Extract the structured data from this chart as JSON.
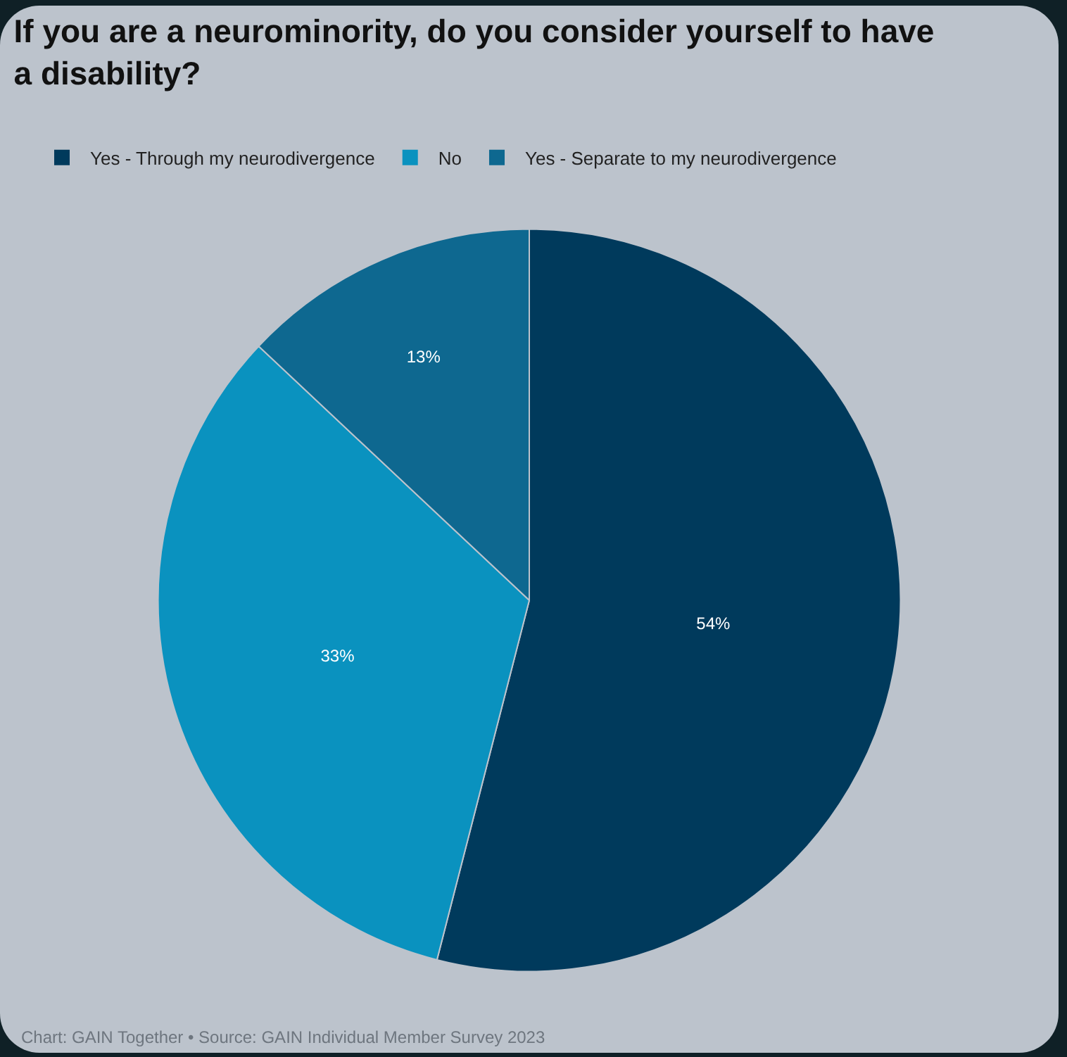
{
  "chart_data": {
    "type": "pie",
    "title": "If you are a neurominority, do you consider yourself to have a disability?",
    "categories": [
      "Yes - Through my neurodivergence",
      "No",
      "Yes - Separate to my neurodivergence"
    ],
    "values": [
      54,
      33,
      13
    ],
    "colors": [
      "#003a5c",
      "#0a92bf",
      "#0e6890"
    ],
    "value_labels": [
      "54%",
      "33%",
      "13%"
    ],
    "legend": "top left",
    "annotations": [
      "Chart: GAIN Together • Source: GAIN Individual Member Survey 2023"
    ]
  }
}
